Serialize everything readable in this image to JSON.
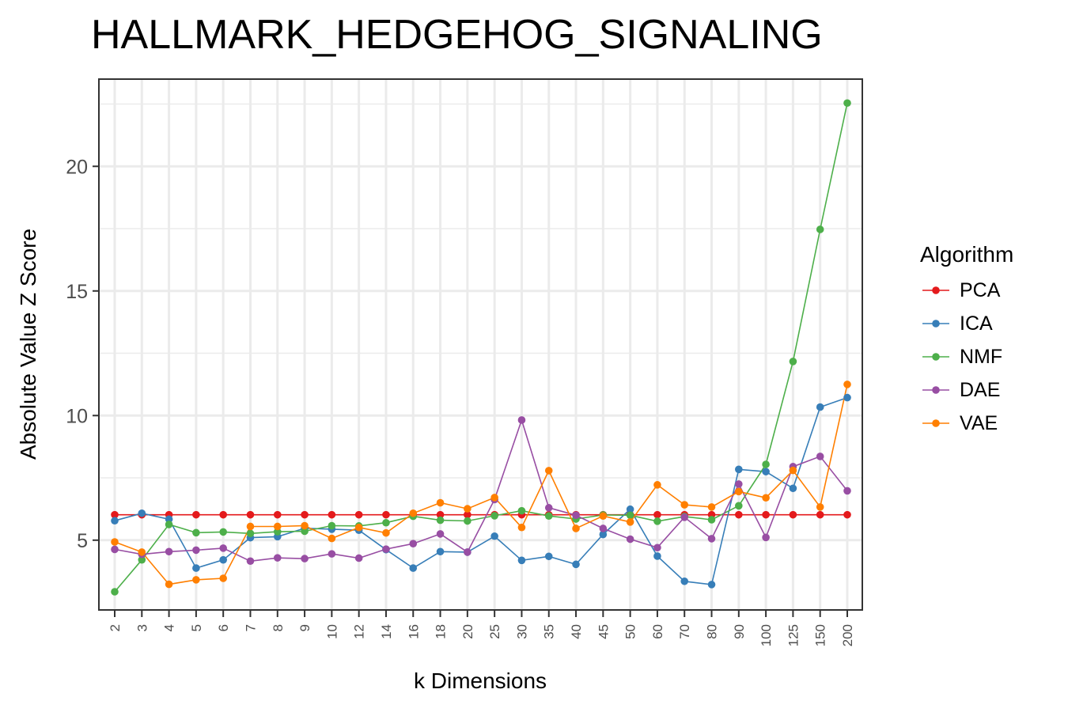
{
  "chart_data": {
    "type": "line",
    "title": "HALLMARK_HEDGEHOG_SIGNALING",
    "xlabel": "k Dimensions",
    "ylabel": "Absolute Value Z Score",
    "categories": [
      "2",
      "3",
      "4",
      "5",
      "6",
      "7",
      "8",
      "9",
      "10",
      "12",
      "14",
      "16",
      "18",
      "20",
      "25",
      "30",
      "35",
      "40",
      "45",
      "50",
      "60",
      "70",
      "80",
      "90",
      "100",
      "125",
      "150",
      "200"
    ],
    "ylim": [
      2.2,
      23.5
    ],
    "yticks": [
      5,
      10,
      15,
      20
    ],
    "ytick_labels": [
      "5",
      "10",
      "15",
      "20"
    ],
    "grid": true,
    "legend": {
      "title": "Algorithm",
      "placement": "right"
    },
    "series": [
      {
        "name": "PCA",
        "color": "#e41a1c",
        "values": [
          6.02,
          6.02,
          6.02,
          6.02,
          6.02,
          6.02,
          6.02,
          6.02,
          6.02,
          6.02,
          6.02,
          6.02,
          6.02,
          6.02,
          6.02,
          6.02,
          6.02,
          6.02,
          6.02,
          6.02,
          6.02,
          6.02,
          6.02,
          6.02,
          6.02,
          6.02,
          6.02,
          6.02
        ]
      },
      {
        "name": "ICA",
        "color": "#377eb8",
        "values": [
          5.78,
          6.08,
          5.84,
          3.88,
          4.21,
          5.1,
          5.14,
          5.48,
          5.44,
          5.4,
          4.62,
          3.88,
          4.54,
          4.52,
          5.16,
          4.19,
          4.35,
          4.03,
          5.23,
          6.24,
          4.36,
          3.35,
          3.22,
          7.84,
          7.75,
          7.08,
          10.34,
          10.72
        ]
      },
      {
        "name": "NMF",
        "color": "#4daf4a",
        "values": [
          2.93,
          4.21,
          5.63,
          5.3,
          5.33,
          5.27,
          5.34,
          5.36,
          5.58,
          5.57,
          5.7,
          5.96,
          5.8,
          5.77,
          5.98,
          6.18,
          5.97,
          5.85,
          6.01,
          6.0,
          5.76,
          5.95,
          5.82,
          6.38,
          8.04,
          12.17,
          17.47,
          22.54
        ]
      },
      {
        "name": "DAE",
        "color": "#984ea3",
        "values": [
          4.63,
          4.43,
          4.54,
          4.6,
          4.68,
          4.16,
          4.29,
          4.26,
          4.45,
          4.28,
          4.64,
          4.86,
          5.25,
          4.52,
          6.63,
          9.82,
          6.3,
          6.0,
          5.47,
          5.04,
          4.7,
          5.92,
          5.06,
          7.25,
          5.11,
          7.95,
          8.36,
          6.98
        ]
      },
      {
        "name": "VAE",
        "color": "#ff7f00",
        "values": [
          4.93,
          4.52,
          3.23,
          3.41,
          3.47,
          5.55,
          5.55,
          5.58,
          5.07,
          5.51,
          5.29,
          6.08,
          6.5,
          6.26,
          6.71,
          5.51,
          7.79,
          5.47,
          5.97,
          5.73,
          7.22,
          6.42,
          6.33,
          6.95,
          6.7,
          7.8,
          6.33,
          11.25
        ]
      }
    ]
  }
}
